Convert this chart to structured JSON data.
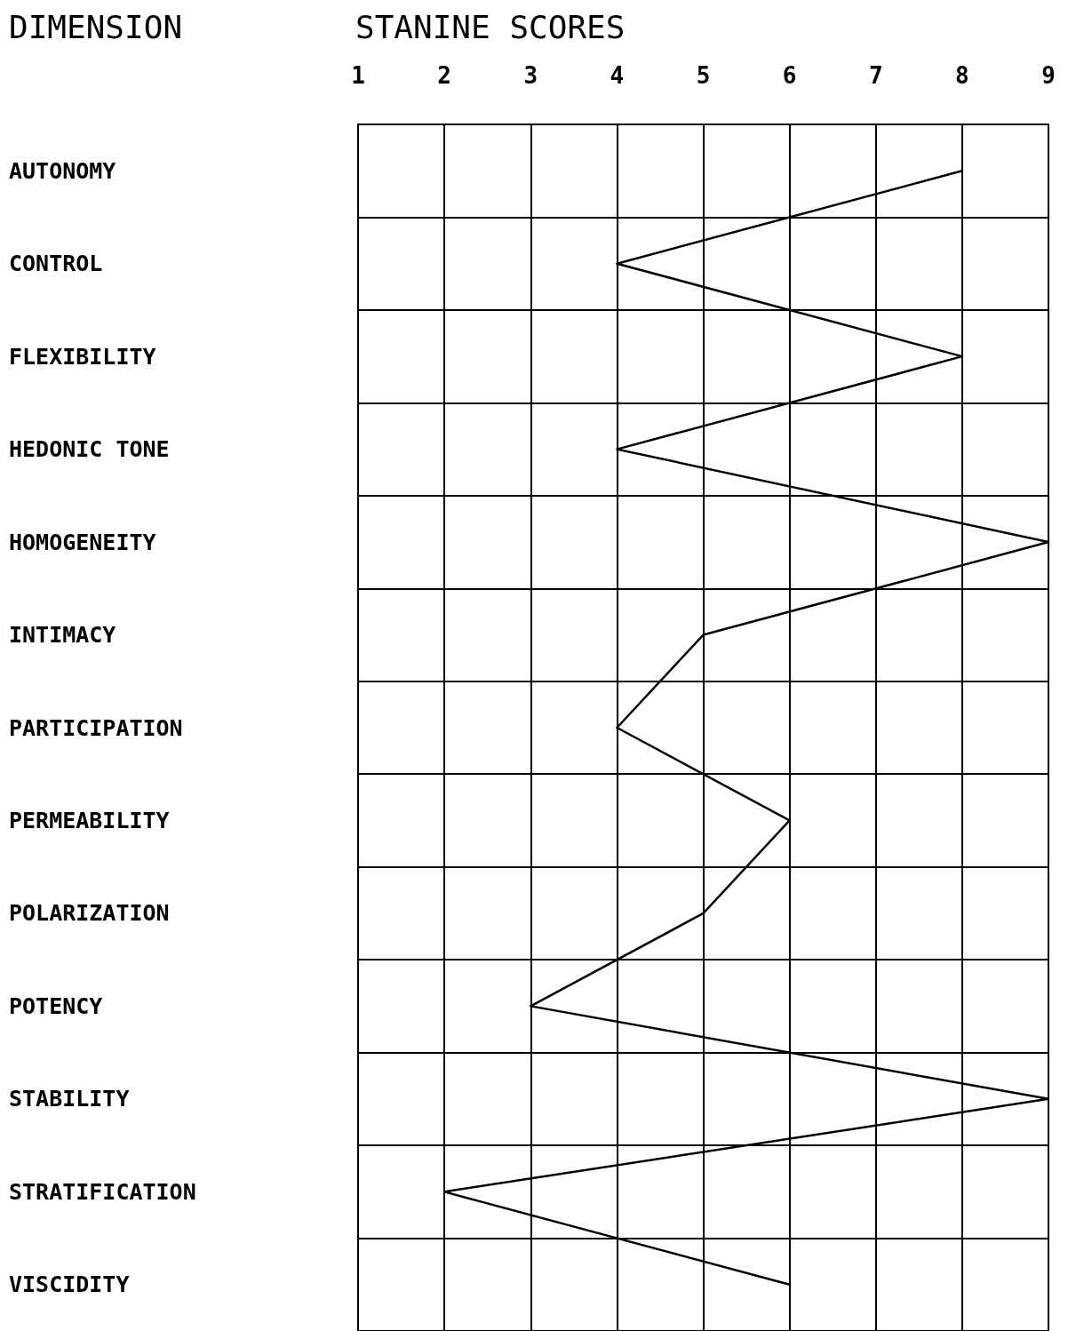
{
  "chart_data": {
    "type": "line",
    "orientation": "horizontal",
    "xlabel": "STANINE SCORES",
    "ylabel": "DIMENSION",
    "categories": [
      "AUTONOMY",
      "CONTROL",
      "FLEXIBILITY",
      "HEDONIC TONE",
      "HOMOGENEITY",
      "INTIMACY",
      "PARTICIPATION",
      "PERMEABILITY",
      "POLARIZATION",
      "POTENCY",
      "STABILITY",
      "STRATIFICATION",
      "VISCIDITY"
    ],
    "series": [
      {
        "color": "#000000",
        "values": [
          8,
          4,
          8,
          4,
          9,
          5,
          4,
          6,
          5,
          3,
          9,
          2,
          6
        ]
      }
    ],
    "xlim": [
      1,
      9
    ],
    "xticks": [
      1,
      2,
      3,
      4,
      5,
      6,
      7,
      8,
      9
    ],
    "grid": true,
    "marker": "none",
    "line_style": "solid"
  }
}
